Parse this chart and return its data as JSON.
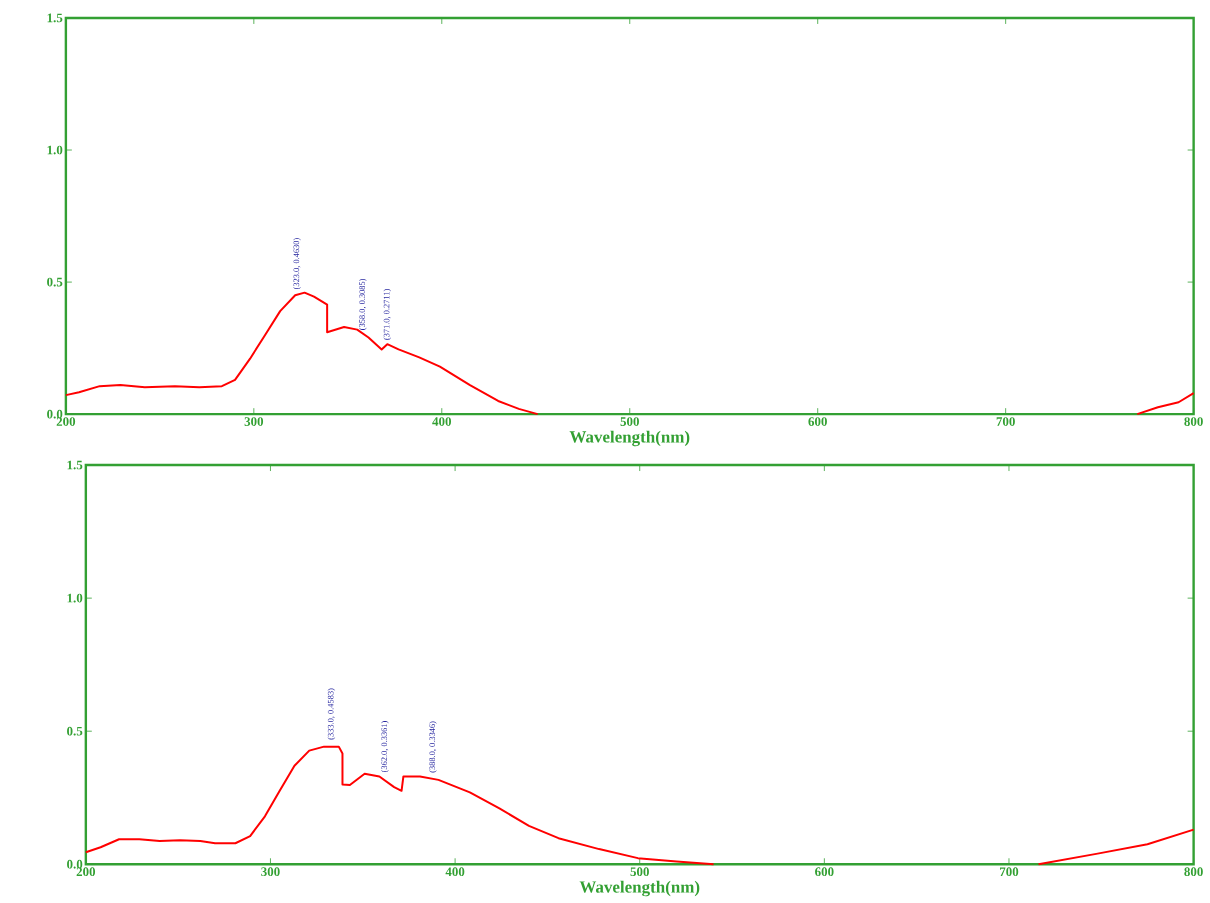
{
  "chart_data": [
    {
      "type": "line",
      "xlabel": "Wavelength(nm)",
      "color": "#ff0000",
      "x": [
        200,
        207,
        218,
        229,
        242,
        258,
        271,
        283,
        290,
        298,
        306,
        314,
        322,
        327,
        332,
        339,
        339,
        348,
        355,
        361,
        368,
        371,
        377,
        388,
        399,
        415,
        430,
        441,
        451,
        452,
        769,
        770,
        781,
        792,
        800
      ],
      "values": [
        0.072,
        0.083,
        0.106,
        0.11,
        0.102,
        0.106,
        0.102,
        0.106,
        0.13,
        0.21,
        0.3,
        0.39,
        0.45,
        0.46,
        0.445,
        0.415,
        0.31,
        0.33,
        0.32,
        0.29,
        0.245,
        0.265,
        0.245,
        0.215,
        0.18,
        0.11,
        0.05,
        0.02,
        0,
        null,
        null,
        0,
        0.026,
        0.045,
        0.08
      ],
      "xlim": [
        200,
        800
      ],
      "ylim": [
        0,
        1.5
      ],
      "xticks": [
        200,
        300,
        400,
        500,
        600,
        700,
        800
      ],
      "yticks": [
        {
          "value": 0,
          "label": "0.0"
        },
        {
          "value": 0.5,
          "label": "0.5"
        },
        {
          "value": 1,
          "label": "1.0"
        },
        {
          "value": 1.5,
          "label": "1.5"
        }
      ],
      "annotations": [
        {
          "text": "(323.0, 0.4630)",
          "x": 323,
          "y": 0.463
        },
        {
          "text": "(358.0, 0.3085)",
          "x": 358,
          "y": 0.3085
        },
        {
          "text": "(371.0, 0.2711)",
          "x": 371,
          "y": 0.2711
        }
      ]
    },
    {
      "type": "line",
      "xlabel": "Wavelength(nm)",
      "color": "#ff0000",
      "x": [
        200,
        208,
        218,
        229,
        240,
        251,
        262,
        270,
        281,
        289,
        297,
        305,
        313,
        321,
        329,
        337,
        339,
        339,
        343,
        351,
        359,
        367,
        371,
        372,
        381,
        391,
        408,
        424,
        440,
        456,
        478,
        499,
        520,
        540,
        541,
        715,
        716,
        748,
        775,
        800
      ],
      "values": [
        0.045,
        0.064,
        0.094,
        0.094,
        0.087,
        0.09,
        0.087,
        0.079,
        0.079,
        0.106,
        0.18,
        0.276,
        0.37,
        0.427,
        0.442,
        0.442,
        0.416,
        0.3,
        0.298,
        0.34,
        0.33,
        0.29,
        0.276,
        0.33,
        0.33,
        0.317,
        0.27,
        0.21,
        0.144,
        0.098,
        0.057,
        0.023,
        0.01,
        0,
        null,
        null,
        0,
        0.04,
        0.075,
        0.13
      ],
      "xlim": [
        200,
        800
      ],
      "ylim": [
        0,
        1.5
      ],
      "xticks": [
        200,
        300,
        400,
        500,
        600,
        700,
        800
      ],
      "yticks": [
        {
          "value": 0,
          "label": "0.0"
        },
        {
          "value": 0.5,
          "label": "0.5"
        },
        {
          "value": 1,
          "label": "1.0"
        },
        {
          "value": 1.5,
          "label": "1.5"
        }
      ],
      "annotations": [
        {
          "text": "(333.0, 0.4583)",
          "x": 333,
          "y": 0.4583
        },
        {
          "text": "(362.0, 0.3361)",
          "x": 362,
          "y": 0.3361
        },
        {
          "text": "(388.0, 0.3346)",
          "x": 388,
          "y": 0.3346
        }
      ]
    }
  ]
}
